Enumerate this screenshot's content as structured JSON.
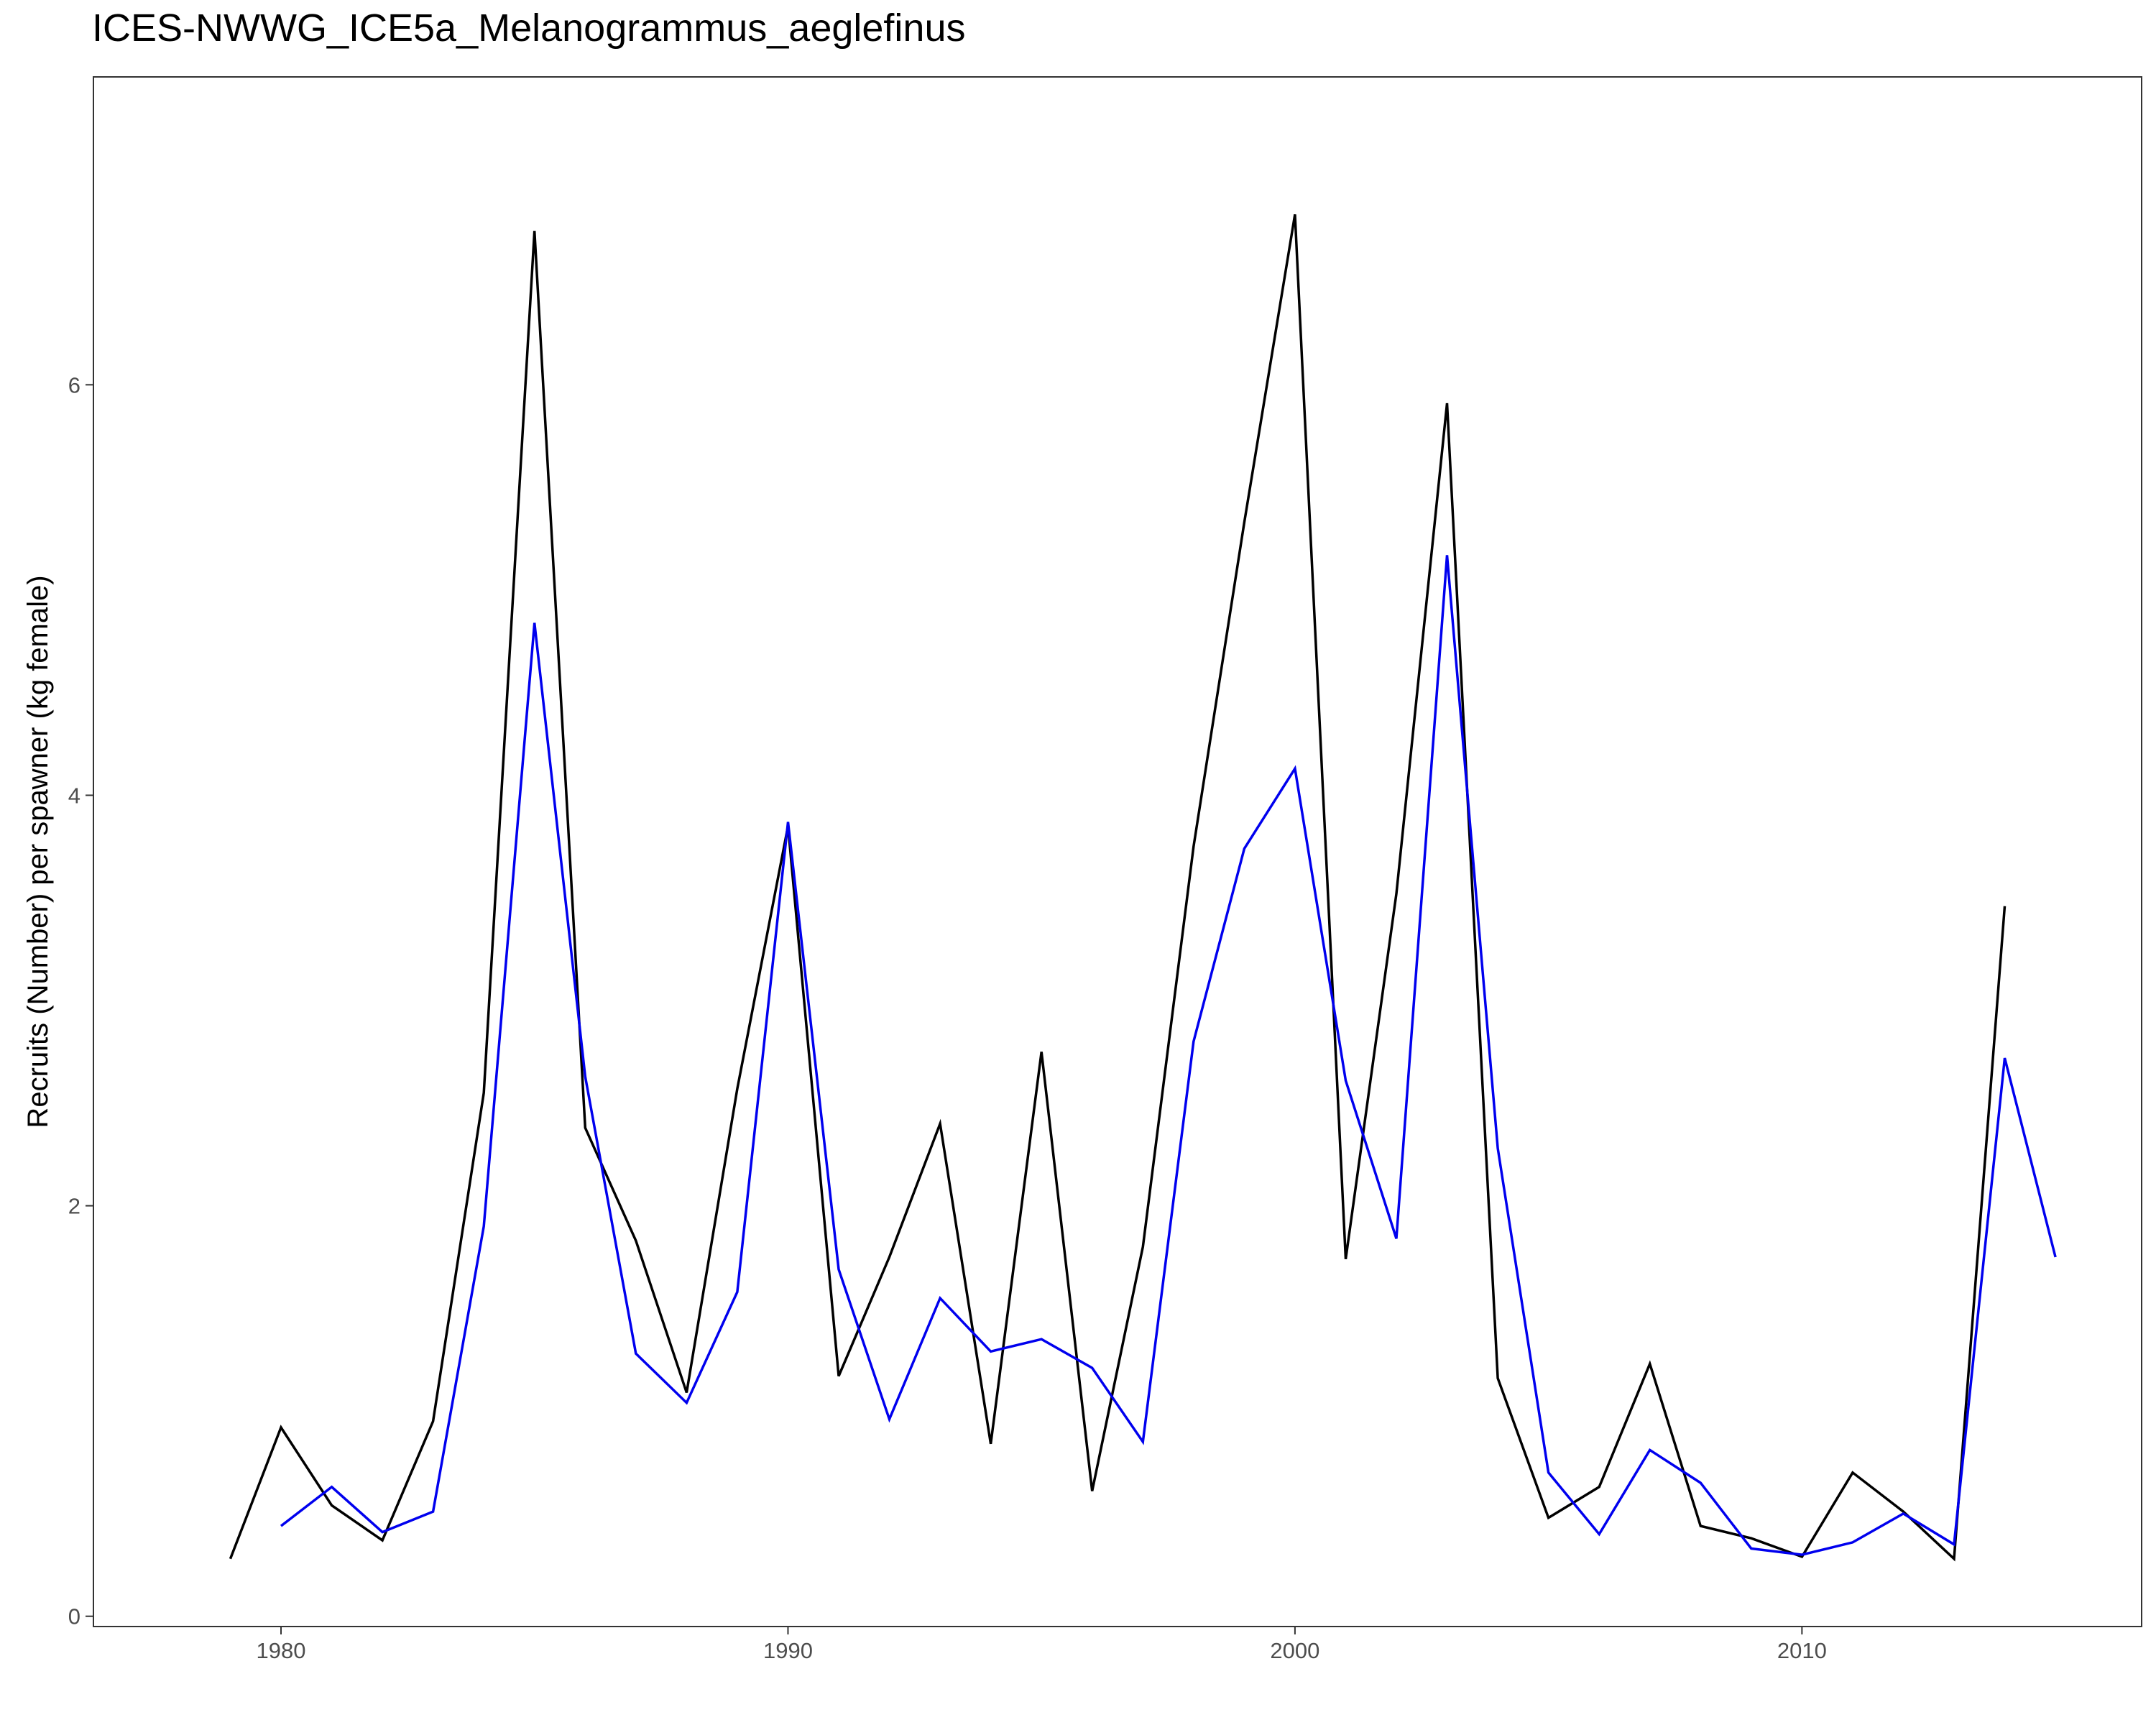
{
  "chart_data": {
    "type": "line",
    "title": "ICES-NWWG_ICE5a_Melanogrammus_aeglefinus",
    "xlabel": "",
    "ylabel": "Recruits (Number) per spawner (kg female)",
    "xlim": [
      1976.3,
      2016.7
    ],
    "ylim": [
      -0.05,
      7.5
    ],
    "x_ticks": [
      1980,
      1990,
      2000,
      2010
    ],
    "y_ticks": [
      0,
      2,
      4,
      6
    ],
    "grid": false,
    "legend": "none",
    "series": [
      {
        "color": "#000000",
        "x": [
          1979,
          1980,
          1981,
          1982,
          1983,
          1984,
          1985,
          1986,
          1987,
          1988,
          1989,
          1990,
          1991,
          1992,
          1993,
          1994,
          1995,
          1996,
          1997,
          1998,
          1999,
          2000,
          2001,
          2002,
          2003,
          2004,
          2005,
          2006,
          2007,
          2008,
          2009,
          2010,
          2011,
          2012,
          2013,
          2014
        ],
        "y": [
          0.28,
          0.92,
          0.54,
          0.37,
          0.95,
          2.55,
          6.75,
          2.38,
          1.83,
          1.09,
          2.57,
          3.85,
          1.17,
          1.75,
          2.4,
          0.84,
          2.75,
          0.61,
          1.8,
          3.75,
          5.33,
          6.83,
          1.74,
          3.52,
          5.91,
          1.16,
          0.48,
          0.63,
          1.23,
          0.44,
          0.38,
          0.29,
          0.7,
          0.51,
          0.28,
          3.46
        ]
      },
      {
        "color": "#0000ee",
        "x": [
          1980,
          1981,
          1982,
          1983,
          1984,
          1985,
          1986,
          1987,
          1988,
          1989,
          1990,
          1991,
          1992,
          1993,
          1994,
          1995,
          1996,
          1997,
          1998,
          1999,
          2000,
          2001,
          2002,
          2003,
          2004,
          2005,
          2006,
          2007,
          2008,
          2009,
          2010,
          2011,
          2012,
          2013,
          2014,
          2015
        ],
        "y": [
          0.44,
          0.63,
          0.41,
          0.51,
          1.9,
          4.84,
          2.63,
          1.28,
          1.04,
          1.58,
          3.87,
          1.69,
          0.96,
          1.55,
          1.29,
          1.35,
          1.21,
          0.85,
          2.8,
          3.74,
          4.13,
          2.61,
          1.84,
          5.17,
          2.28,
          0.7,
          0.4,
          0.81,
          0.65,
          0.33,
          0.3,
          0.36,
          0.5,
          0.35,
          2.72,
          1.75
        ]
      }
    ]
  }
}
